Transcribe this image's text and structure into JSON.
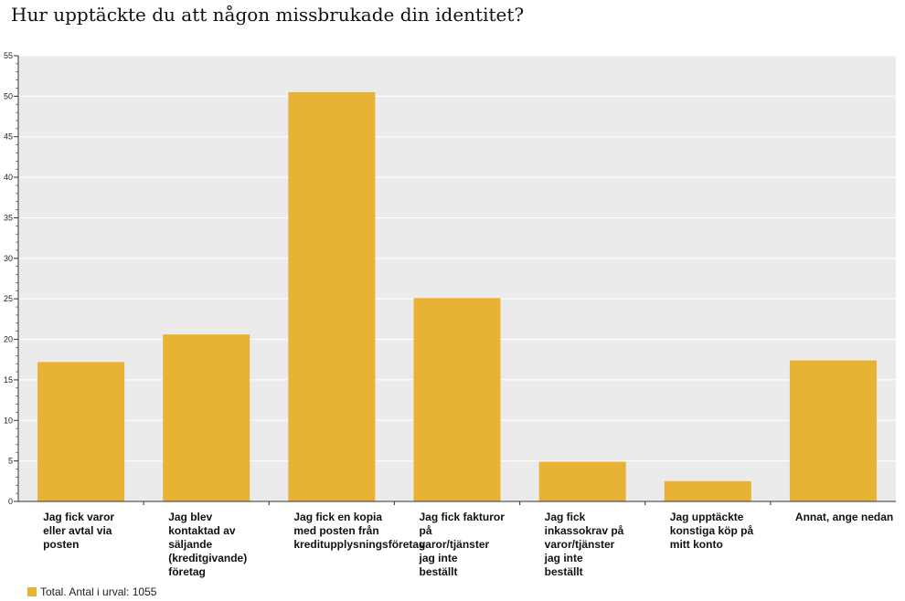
{
  "chart_data": {
    "type": "bar",
    "title": "Hur upptäckte du att någon missbrukade din identitet?",
    "categories": [
      "Jag fick varor\neller avtal via\nposten",
      "Jag blev\nkontaktad av\nsäljande\n(kreditgivande)\nföretag",
      "Jag fick en kopia\nmed posten från\nkreditupplysningsföretag",
      "Jag fick fakturor\npå\nvaror/tjänster\njag inte\nbeställt",
      "Jag fick\ninkassokrav på\nvaror/tjänster\njag inte\nbeställt",
      "Jag upptäckte\nkonstiga köp på\nmitt konto",
      "Annat, ange nedan"
    ],
    "series": [
      {
        "name": "Total. Antal i urval: 1055",
        "values": [
          17.2,
          20.6,
          50.5,
          25.1,
          4.9,
          2.5,
          17.4
        ]
      }
    ],
    "ylim": [
      0,
      55
    ],
    "yticks": [
      0,
      5,
      10,
      15,
      20,
      25,
      30,
      35,
      40,
      45,
      50,
      55
    ],
    "grid": true,
    "legend_position": "bottom-left"
  },
  "colors": {
    "bar": "#E8B334",
    "plot_background": "#EBEBEB",
    "gridline": "#FFFFFF",
    "axis": "#333333"
  }
}
